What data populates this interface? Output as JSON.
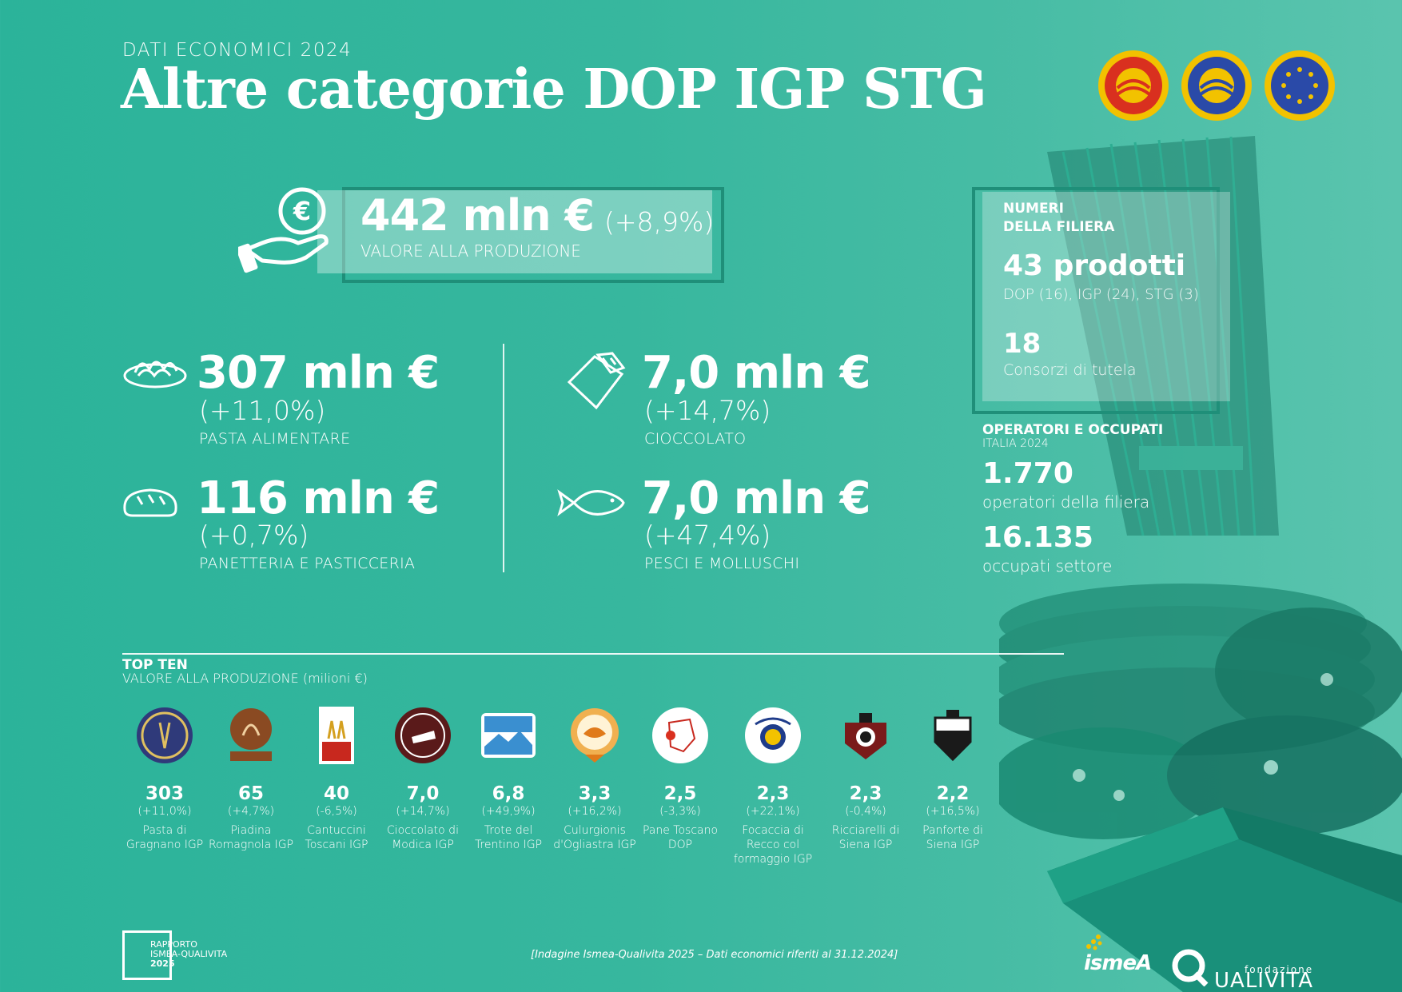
{
  "header": {
    "kicker": "DATI ECONOMICI 2024",
    "title": "Altre categorie DOP IGP STG"
  },
  "seals": [
    {
      "name": "DOP",
      "color": "#d9301f",
      "ring": "#f2c200"
    },
    {
      "name": "IGP",
      "color": "#2a4aa8",
      "ring": "#f2c200"
    },
    {
      "name": "STG",
      "color": "#2a4aa8",
      "ring": "#f2c200"
    }
  ],
  "main": {
    "value": "442 mln €",
    "delta": "(+8,9%)",
    "label": "VALORE ALLA PRODUZIONE",
    "icon": "euro-hand-icon"
  },
  "categories": [
    {
      "value": "307 mln €",
      "delta": "(+11,0%)",
      "label": "PASTA ALIMENTARE",
      "icon": "pasta-icon"
    },
    {
      "value": "116 mln €",
      "delta": "(+0,7%)",
      "label": "PANETTERIA E PASTICCERIA",
      "icon": "bread-icon"
    },
    {
      "value": "7,0 mln €",
      "delta": "(+14,7%)",
      "label": "CIOCCOLATO",
      "icon": "chocolate-icon"
    },
    {
      "value": "7,0 mln €",
      "delta": "(+47,4%)",
      "label": "PESCI E MOLLUSCHI",
      "icon": "fish-icon"
    }
  ],
  "panel": {
    "heading_1": "NUMERI",
    "heading_2": "DELLA FILIERA",
    "products": "43 prodotti",
    "products_detail": "DOP (16), IGP (24), STG (3)",
    "consortia": "18",
    "consortia_label": "Consorzi di tutela"
  },
  "operators": {
    "heading": "OPERATORI E OCCUPATI",
    "subheading": "ITALIA 2024",
    "operators_value": "1.770",
    "operators_label": "operatori della filiera",
    "employed_value": "16.135",
    "employed_label": "occupati settore"
  },
  "top_ten": {
    "heading": "TOP TEN",
    "subheading": "VALORE ALLA PRODUZIONE (milioni €)",
    "items": [
      {
        "value": "303",
        "delta": "(+11,0%)",
        "name": "Pasta di Gragnano IGP",
        "logo_color": "#2f3a7a"
      },
      {
        "value": "65",
        "delta": "(+4,7%)",
        "name": "Piadina Romagnola IGP",
        "logo_color": "#8a4a22"
      },
      {
        "value": "40",
        "delta": "(-6,5%)",
        "name": "Cantuccini Toscani IGP",
        "logo_color": "#c8281e"
      },
      {
        "value": "7,0",
        "delta": "(+14,7%)",
        "name": "Cioccolato di Modica IGP",
        "logo_color": "#5a1a1a"
      },
      {
        "value": "6,8",
        "delta": "(+49,9%)",
        "name": "Trote del Trentino IGP",
        "logo_color": "#3a8fd0"
      },
      {
        "value": "3,3",
        "delta": "(+16,2%)",
        "name": "Culurgionis d'Ogliastra IGP",
        "logo_color": "#e07a1a"
      },
      {
        "value": "2,5",
        "delta": "(-3,3%)",
        "name": "Pane Toscano DOP",
        "logo_color": "#c8281e"
      },
      {
        "value": "2,3",
        "delta": "(+22,1%)",
        "name": "Focaccia di Recco col formaggio IGP",
        "logo_color": "#1f3c8a"
      },
      {
        "value": "2,3",
        "delta": "(-0,4%)",
        "name": "Ricciarelli di Siena IGP",
        "logo_color": "#7a1a1a"
      },
      {
        "value": "2,2",
        "delta": "(+16,5%)",
        "name": "Panforte di Siena IGP",
        "logo_color": "#1a1a1a"
      }
    ]
  },
  "footer": {
    "note": "[Indagine Ismea-Qualivita 2025 – Dati economici riferiti al 31.12.2024]",
    "rapporto_1": "RAPPORTO",
    "rapporto_2": "ISMEA-QUALIVITA",
    "rapporto_year": "2025",
    "ismea": "ismeA",
    "qualivita_fondazione": "fondazione",
    "qualivita_name": "UALIVITA"
  }
}
